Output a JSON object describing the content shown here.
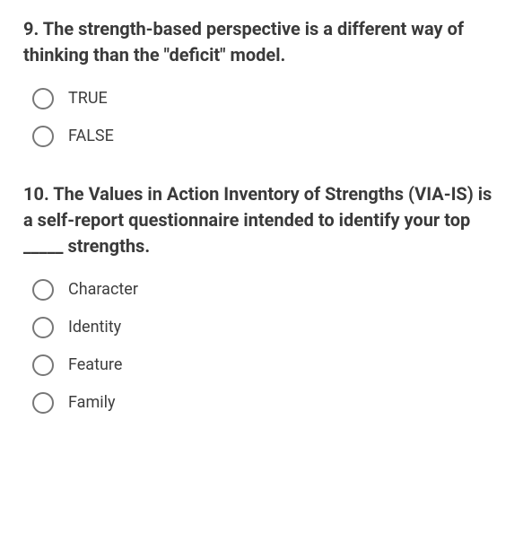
{
  "questions": [
    {
      "prompt": "9. The strength-based perspective is a different way of thinking than the \"deficit\" model.",
      "options": [
        "TRUE",
        "FALSE"
      ]
    },
    {
      "prompt": "10. The Values in Action Inventory of Strengths (VIA-IS) is a self-report questionnaire intended to identify your top _____ strengths.",
      "options": [
        "Character",
        "Identity",
        "Feature",
        "Family"
      ]
    }
  ],
  "colors": {
    "text": "#3a3a3a",
    "option_text": "#3d3d3d",
    "radio_border": "#777777",
    "background": "#ffffff"
  },
  "typography": {
    "question_fontsize": 20,
    "question_fontweight": 700,
    "option_fontsize": 18
  }
}
